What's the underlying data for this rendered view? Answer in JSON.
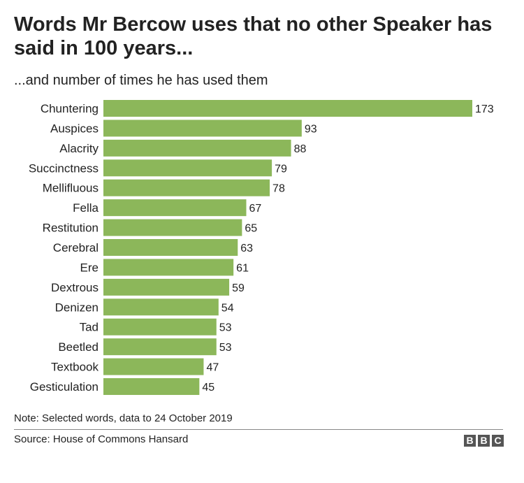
{
  "header": {
    "title": "Words Mr Bercow uses that no other Speaker has said in 100 years...",
    "subtitle": "...and number of times he has used them"
  },
  "footer": {
    "note": "Note: Selected words, data to 24 October 2019",
    "source": "Source: House of Commons Hansard",
    "logo_letters": [
      "B",
      "B",
      "C"
    ]
  },
  "colors": {
    "bar": "#8cb75a",
    "text": "#222222"
  },
  "chart_data": {
    "type": "bar",
    "orientation": "horizontal",
    "title": "Words Mr Bercow uses that no other Speaker has said in 100 years...",
    "subtitle": "...and number of times he has used them",
    "categories": [
      "Chuntering",
      "Auspices",
      "Alacrity",
      "Succinctness",
      "Mellifluous",
      "Fella",
      "Restitution",
      "Cerebral",
      "Ere",
      "Dextrous",
      "Denizen",
      "Tad",
      "Beetled",
      "Textbook",
      "Gesticulation"
    ],
    "values": [
      173,
      93,
      88,
      79,
      78,
      67,
      65,
      63,
      61,
      59,
      54,
      53,
      53,
      47,
      45
    ],
    "data_labels": [
      "173",
      "93",
      "88",
      "79",
      "78",
      "67",
      "65",
      "63",
      "61",
      "59",
      "54",
      "53",
      "53",
      "47",
      "45"
    ],
    "xlim": [
      0,
      173
    ],
    "grid": false,
    "legend": "none"
  }
}
